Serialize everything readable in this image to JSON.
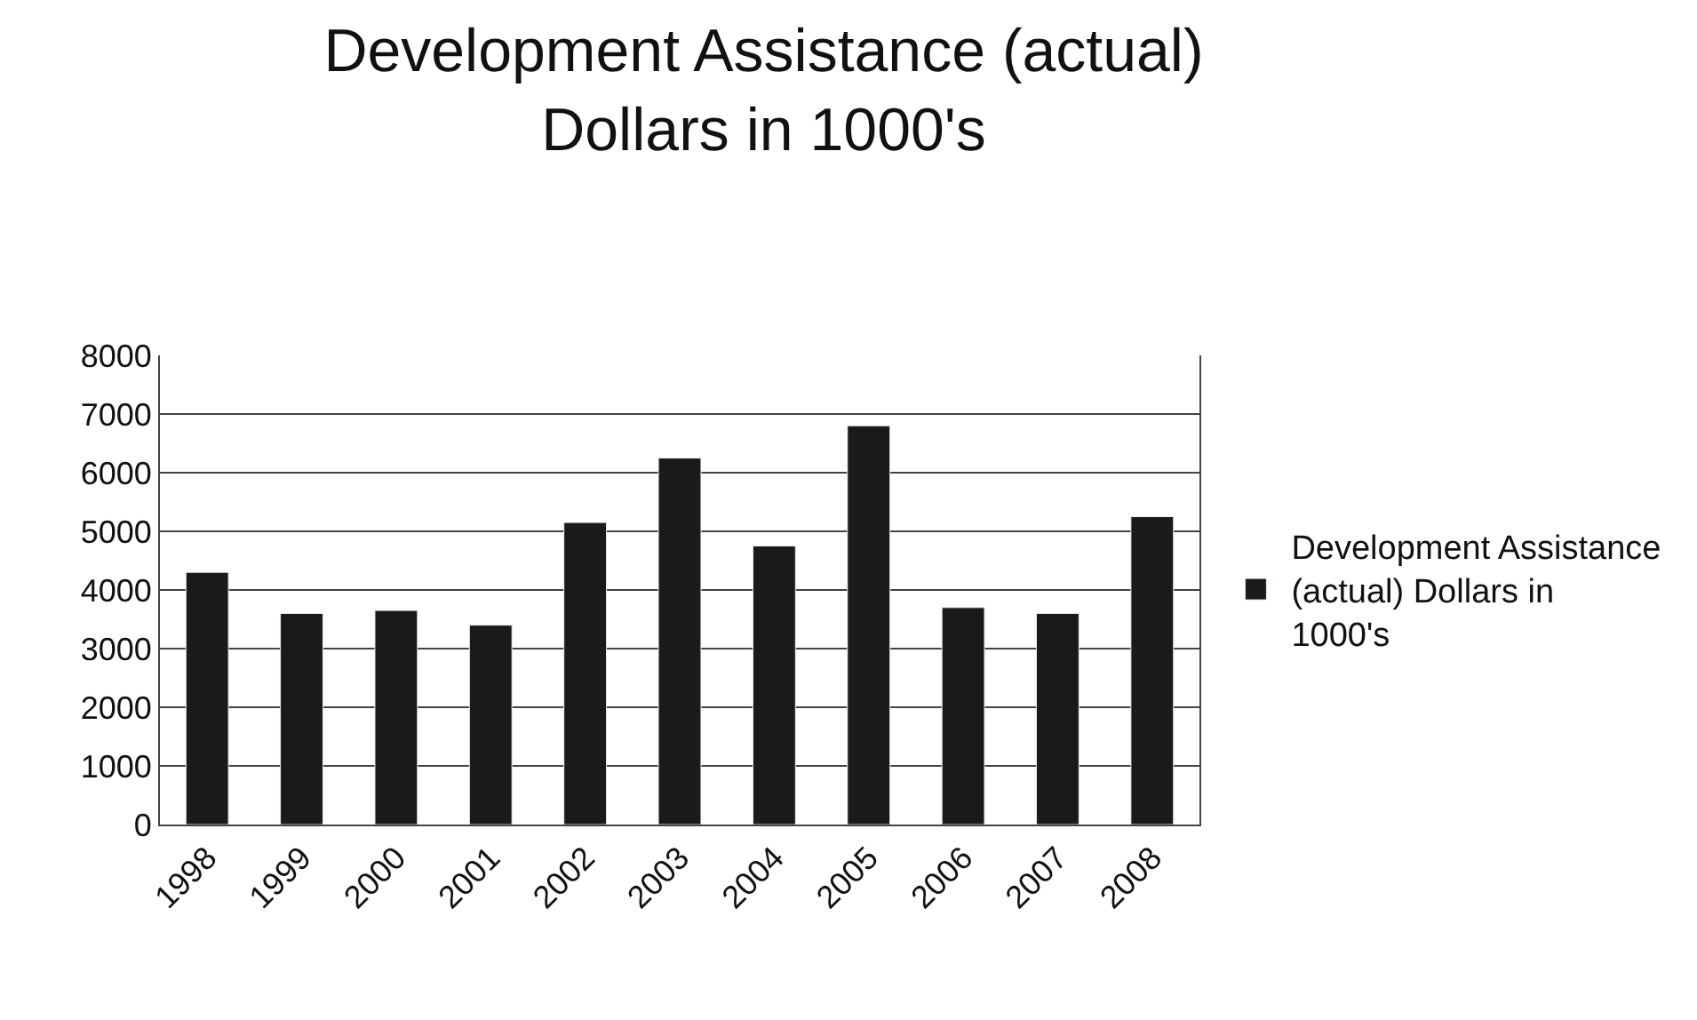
{
  "chart_data": {
    "type": "bar",
    "title": "Development Assistance (actual)\nDollars in 1000's",
    "categories": [
      "1998",
      "1999",
      "2000",
      "2001",
      "2002",
      "2003",
      "2004",
      "2005",
      "2006",
      "2007",
      "2008"
    ],
    "series": [
      {
        "name": "Development Assistance (actual) Dollars in 1000's",
        "color": "#1a1a1a",
        "values": [
          4300,
          3600,
          3650,
          3400,
          5150,
          6250,
          4750,
          6800,
          3700,
          3600,
          5250
        ]
      }
    ],
    "ylim": [
      0,
      8000
    ],
    "yticks": [
      0,
      1000,
      2000,
      3000,
      4000,
      5000,
      6000,
      7000,
      8000
    ],
    "grid": "y",
    "legend": "right"
  }
}
